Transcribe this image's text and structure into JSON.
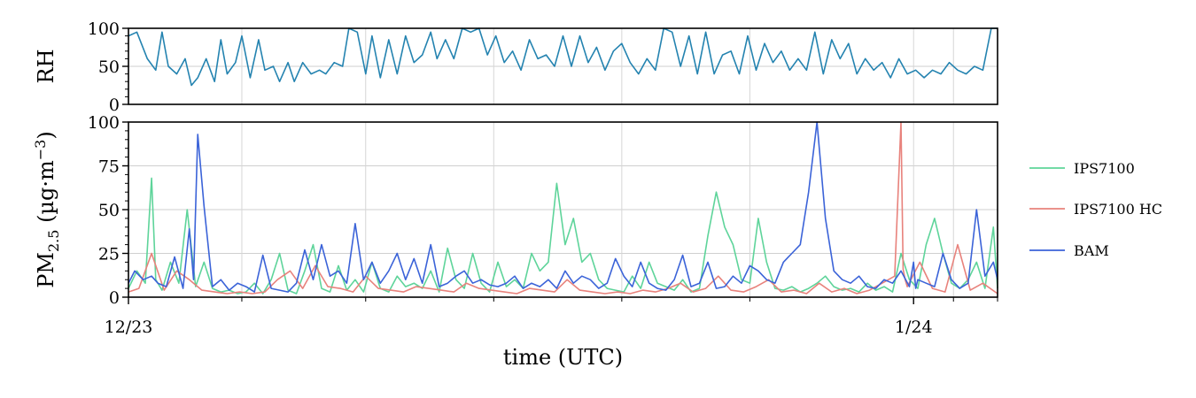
{
  "chart_data": [
    {
      "id": "rh_panel",
      "type": "line",
      "title": "",
      "xlabel": "",
      "ylabel": "RH",
      "xlim": [
        "2022-12-23",
        "2024-02-10"
      ],
      "ylim": [
        0,
        100
      ],
      "yticks": [
        0,
        50,
        100
      ],
      "grid": true,
      "series": [
        {
          "name": "",
          "color": "#2483b0",
          "x": [
            "2022-12-23",
            "2022-12-27",
            "2023-01-01",
            "2023-01-05",
            "2023-01-08",
            "2023-01-11",
            "2023-01-15",
            "2023-01-19",
            "2023-01-22",
            "2023-01-25",
            "2023-01-29",
            "2023-02-02",
            "2023-02-05",
            "2023-02-08",
            "2023-02-12",
            "2023-02-15",
            "2023-02-19",
            "2023-02-23",
            "2023-02-26",
            "2023-03-02",
            "2023-03-05",
            "2023-03-09",
            "2023-03-12",
            "2023-03-16",
            "2023-03-20",
            "2023-03-24",
            "2023-03-27",
            "2023-03-31",
            "2023-04-04",
            "2023-04-07",
            "2023-04-11",
            "2023-04-15",
            "2023-04-18",
            "2023-04-22",
            "2023-04-26",
            "2023-04-30",
            "2023-05-04",
            "2023-05-08",
            "2023-05-12",
            "2023-05-16",
            "2023-05-19",
            "2023-05-23",
            "2023-05-27",
            "2023-05-31",
            "2023-06-04",
            "2023-06-08",
            "2023-06-12",
            "2023-06-16",
            "2023-06-20",
            "2023-06-24",
            "2023-06-28",
            "2023-07-02",
            "2023-07-06",
            "2023-07-10",
            "2023-07-14",
            "2023-07-18",
            "2023-07-22",
            "2023-07-26",
            "2023-07-30",
            "2023-08-03",
            "2023-08-07",
            "2023-08-11",
            "2023-08-15",
            "2023-08-19",
            "2023-08-23",
            "2023-08-27",
            "2023-08-31",
            "2023-09-04",
            "2023-09-08",
            "2023-09-12",
            "2023-09-16",
            "2023-09-20",
            "2023-09-24",
            "2023-09-28",
            "2023-10-02",
            "2023-10-06",
            "2023-10-10",
            "2023-10-14",
            "2023-10-18",
            "2023-10-22",
            "2023-10-26",
            "2023-10-30",
            "2023-11-03",
            "2023-11-07",
            "2023-11-11",
            "2023-11-15",
            "2023-11-19",
            "2023-11-23",
            "2023-11-27",
            "2023-12-01",
            "2023-12-05",
            "2023-12-09",
            "2023-12-13",
            "2023-12-17",
            "2023-12-21",
            "2023-12-25",
            "2023-12-29",
            "2024-01-02",
            "2024-01-06",
            "2024-01-10",
            "2024-01-14",
            "2024-01-18",
            "2024-01-22",
            "2024-01-26",
            "2024-01-30",
            "2024-02-03",
            "2024-02-07",
            "2024-02-10"
          ],
          "y": [
            90,
            95,
            60,
            45,
            95,
            50,
            40,
            60,
            25,
            35,
            60,
            30,
            85,
            40,
            55,
            90,
            35,
            85,
            45,
            50,
            30,
            55,
            30,
            55,
            40,
            45,
            40,
            55,
            50,
            100,
            95,
            40,
            90,
            35,
            85,
            40,
            90,
            55,
            65,
            95,
            60,
            85,
            60,
            100,
            95,
            100,
            65,
            90,
            55,
            70,
            45,
            85,
            60,
            65,
            50,
            90,
            50,
            90,
            55,
            75,
            45,
            70,
            80,
            55,
            40,
            60,
            45,
            100,
            95,
            50,
            90,
            40,
            95,
            40,
            65,
            70,
            40,
            90,
            45,
            80,
            55,
            70,
            45,
            60,
            45,
            95,
            40,
            85,
            60,
            80,
            40,
            60,
            45,
            55,
            35,
            60,
            40,
            45,
            35,
            45,
            40,
            55,
            45,
            40,
            50,
            45,
            100,
            100
          ]
        }
      ]
    },
    {
      "id": "pm_panel",
      "type": "line",
      "title": "",
      "xlabel": "time (UTC)",
      "ylabel": "PM",
      "ylabel_sub": "2.5",
      "ylabel_rest": " (µg·m",
      "ylabel_sup": "−3",
      "ylabel_end": ")",
      "xlim": [
        "2022-12-23",
        "2024-02-10"
      ],
      "ylim": [
        0,
        100
      ],
      "yticks": [
        0,
        25,
        50,
        75,
        100
      ],
      "xtick_labels": [
        {
          "date": "2022-12-23",
          "label": "12/23"
        },
        {
          "date": "2024-01-01",
          "label": "1/24"
        }
      ],
      "xtick_minor": [
        "2023-02-15",
        "2023-04-15",
        "2023-06-15",
        "2023-08-15",
        "2023-10-15",
        "2024-01-20",
        "2024-02-10"
      ],
      "grid": true,
      "legend": "right",
      "series": [
        {
          "name": "IPS7100",
          "color": "#5ed49a",
          "x": [
            "2022-12-23",
            "2022-12-27",
            "2022-12-31",
            "2023-01-03",
            "2023-01-05",
            "2023-01-08",
            "2023-01-12",
            "2023-01-16",
            "2023-01-20",
            "2023-01-24",
            "2023-01-28",
            "2023-02-01",
            "2023-02-05",
            "2023-02-09",
            "2023-02-13",
            "2023-02-17",
            "2023-02-21",
            "2023-02-25",
            "2023-03-01",
            "2023-03-05",
            "2023-03-09",
            "2023-03-13",
            "2023-03-17",
            "2023-03-21",
            "2023-03-25",
            "2023-03-29",
            "2023-04-02",
            "2023-04-06",
            "2023-04-10",
            "2023-04-14",
            "2023-04-18",
            "2023-04-22",
            "2023-04-26",
            "2023-04-30",
            "2023-05-04",
            "2023-05-08",
            "2023-05-12",
            "2023-05-16",
            "2023-05-20",
            "2023-05-24",
            "2023-05-28",
            "2023-06-01",
            "2023-06-05",
            "2023-06-09",
            "2023-06-13",
            "2023-06-17",
            "2023-06-21",
            "2023-06-25",
            "2023-06-29",
            "2023-07-03",
            "2023-07-07",
            "2023-07-11",
            "2023-07-15",
            "2023-07-19",
            "2023-07-23",
            "2023-07-27",
            "2023-07-31",
            "2023-08-04",
            "2023-08-08",
            "2023-08-12",
            "2023-08-16",
            "2023-08-20",
            "2023-08-24",
            "2023-08-28",
            "2023-09-01",
            "2023-09-05",
            "2023-09-09",
            "2023-09-13",
            "2023-09-17",
            "2023-09-21",
            "2023-09-25",
            "2023-09-29",
            "2023-10-03",
            "2023-10-07",
            "2023-10-11",
            "2023-10-15",
            "2023-10-19",
            "2023-10-23",
            "2023-10-27",
            "2023-10-31",
            "2023-11-04",
            "2023-11-08",
            "2023-11-12",
            "2023-11-16",
            "2023-11-20",
            "2023-11-24",
            "2023-11-28",
            "2023-12-02",
            "2023-12-06",
            "2023-12-10",
            "2023-12-14",
            "2023-12-18",
            "2023-12-22",
            "2023-12-26",
            "2023-12-30",
            "2024-01-03",
            "2024-01-07",
            "2024-01-11",
            "2024-01-15",
            "2024-01-19",
            "2024-01-23",
            "2024-01-27",
            "2024-01-31",
            "2024-02-04",
            "2024-02-08",
            "2024-02-10"
          ],
          "y": [
            5,
            15,
            8,
            68,
            10,
            4,
            20,
            8,
            50,
            6,
            20,
            5,
            3,
            4,
            2,
            3,
            8,
            2,
            10,
            25,
            4,
            2,
            15,
            30,
            5,
            3,
            18,
            4,
            10,
            3,
            20,
            5,
            3,
            12,
            6,
            8,
            5,
            15,
            3,
            28,
            10,
            5,
            25,
            8,
            3,
            20,
            6,
            10,
            5,
            25,
            15,
            20,
            65,
            30,
            45,
            20,
            25,
            10,
            5,
            4,
            3,
            12,
            5,
            20,
            8,
            6,
            4,
            10,
            3,
            5,
            35,
            60,
            40,
            30,
            10,
            8,
            45,
            20,
            5,
            4,
            6,
            3,
            5,
            8,
            12,
            6,
            4,
            5,
            3,
            8,
            4,
            6,
            3,
            25,
            10,
            5,
            30,
            45,
            25,
            8,
            5,
            10,
            20,
            5,
            40,
            5
          ]
        },
        {
          "name": "IPS7100 HC",
          "color": "#e8827c",
          "x": [
            "2022-12-23",
            "2022-12-28",
            "2023-01-03",
            "2023-01-09",
            "2023-01-15",
            "2023-01-21",
            "2023-01-27",
            "2023-02-02",
            "2023-02-08",
            "2023-02-14",
            "2023-02-20",
            "2023-02-26",
            "2023-03-04",
            "2023-03-10",
            "2023-03-16",
            "2023-03-22",
            "2023-03-28",
            "2023-04-03",
            "2023-04-09",
            "2023-04-15",
            "2023-04-21",
            "2023-04-27",
            "2023-05-03",
            "2023-05-09",
            "2023-05-15",
            "2023-05-21",
            "2023-05-27",
            "2023-06-02",
            "2023-06-08",
            "2023-06-14",
            "2023-06-20",
            "2023-06-26",
            "2023-07-02",
            "2023-07-08",
            "2023-07-14",
            "2023-07-20",
            "2023-07-26",
            "2023-08-01",
            "2023-08-07",
            "2023-08-13",
            "2023-08-19",
            "2023-08-25",
            "2023-08-31",
            "2023-09-06",
            "2023-09-12",
            "2023-09-18",
            "2023-09-24",
            "2023-09-30",
            "2023-10-06",
            "2023-10-12",
            "2023-10-18",
            "2023-10-24",
            "2023-10-30",
            "2023-11-05",
            "2023-11-11",
            "2023-11-17",
            "2023-11-23",
            "2023-11-29",
            "2023-12-05",
            "2023-12-11",
            "2023-12-17",
            "2023-12-23",
            "2023-12-26",
            "2023-12-27",
            "2023-12-28",
            "2023-12-29",
            "2024-01-04",
            "2024-01-10",
            "2024-01-16",
            "2024-01-22",
            "2024-01-28",
            "2024-02-03",
            "2024-02-10"
          ],
          "y": [
            3,
            5,
            25,
            4,
            15,
            10,
            4,
            3,
            2,
            3,
            2,
            3,
            10,
            15,
            5,
            18,
            6,
            5,
            3,
            12,
            5,
            4,
            3,
            6,
            5,
            4,
            3,
            8,
            5,
            4,
            3,
            2,
            5,
            4,
            3,
            10,
            4,
            3,
            2,
            3,
            2,
            4,
            3,
            5,
            8,
            3,
            5,
            12,
            4,
            3,
            6,
            10,
            3,
            4,
            2,
            8,
            3,
            5,
            2,
            4,
            8,
            12,
            100,
            16,
            10,
            6,
            20,
            5,
            3,
            30,
            4,
            8,
            2
          ]
        },
        {
          "name": "BAM",
          "color": "#3b63d8",
          "x": [
            "2022-12-23",
            "2022-12-26",
            "2022-12-30",
            "2023-01-03",
            "2023-01-06",
            "2023-01-10",
            "2023-01-14",
            "2023-01-18",
            "2023-01-21",
            "2023-01-23",
            "2023-01-25",
            "2023-01-28",
            "2023-02-01",
            "2023-02-05",
            "2023-02-09",
            "2023-02-13",
            "2023-02-17",
            "2023-02-21",
            "2023-02-25",
            "2023-03-01",
            "2023-03-05",
            "2023-03-09",
            "2023-03-13",
            "2023-03-17",
            "2023-03-21",
            "2023-03-25",
            "2023-03-29",
            "2023-04-02",
            "2023-04-06",
            "2023-04-10",
            "2023-04-14",
            "2023-04-18",
            "2023-04-22",
            "2023-04-26",
            "2023-04-30",
            "2023-05-04",
            "2023-05-08",
            "2023-05-12",
            "2023-05-16",
            "2023-05-20",
            "2023-05-24",
            "2023-05-28",
            "2023-06-01",
            "2023-06-05",
            "2023-06-09",
            "2023-06-13",
            "2023-06-17",
            "2023-06-21",
            "2023-06-25",
            "2023-06-29",
            "2023-07-03",
            "2023-07-07",
            "2023-07-11",
            "2023-07-15",
            "2023-07-19",
            "2023-07-23",
            "2023-07-27",
            "2023-07-31",
            "2023-08-04",
            "2023-08-08",
            "2023-08-12",
            "2023-08-16",
            "2023-08-20",
            "2023-08-24",
            "2023-08-28",
            "2023-09-01",
            "2023-09-05",
            "2023-09-09",
            "2023-09-13",
            "2023-09-17",
            "2023-09-21",
            "2023-09-25",
            "2023-09-29",
            "2023-10-03",
            "2023-10-07",
            "2023-10-11",
            "2023-10-15",
            "2023-10-19",
            "2023-10-23",
            "2023-10-27",
            "2023-10-31",
            "2023-11-04",
            "2023-11-08",
            "2023-11-12",
            "2023-11-16",
            "2023-11-20",
            "2023-11-24",
            "2023-11-28",
            "2023-12-02",
            "2023-12-06",
            "2023-12-10",
            "2023-12-14",
            "2023-12-18",
            "2023-12-22",
            "2023-12-26",
            "2023-12-30",
            "2024-01-01",
            "2024-01-02",
            "2024-01-03",
            "2024-01-07",
            "2024-01-11",
            "2024-01-15",
            "2024-01-19",
            "2024-01-23",
            "2024-01-27",
            "2024-01-31",
            "2024-02-04",
            "2024-02-08",
            "2024-02-10"
          ],
          "y": [
            8,
            15,
            10,
            12,
            8,
            6,
            23,
            5,
            39,
            10,
            93,
            52,
            6,
            10,
            4,
            8,
            6,
            3,
            24,
            5,
            4,
            3,
            8,
            27,
            10,
            30,
            12,
            15,
            8,
            42,
            10,
            20,
            8,
            15,
            25,
            10,
            22,
            8,
            30,
            6,
            8,
            12,
            15,
            8,
            10,
            7,
            6,
            8,
            12,
            5,
            8,
            6,
            10,
            5,
            15,
            8,
            12,
            10,
            5,
            8,
            22,
            12,
            6,
            20,
            8,
            5,
            4,
            10,
            24,
            6,
            8,
            20,
            5,
            6,
            12,
            8,
            18,
            15,
            10,
            8,
            20,
            25,
            30,
            60,
            100,
            45,
            15,
            10,
            8,
            12,
            6,
            5,
            10,
            8,
            15,
            6,
            20,
            5,
            10,
            8,
            6,
            25,
            10,
            5,
            8,
            50,
            12,
            20,
            10
          ]
        }
      ]
    }
  ]
}
